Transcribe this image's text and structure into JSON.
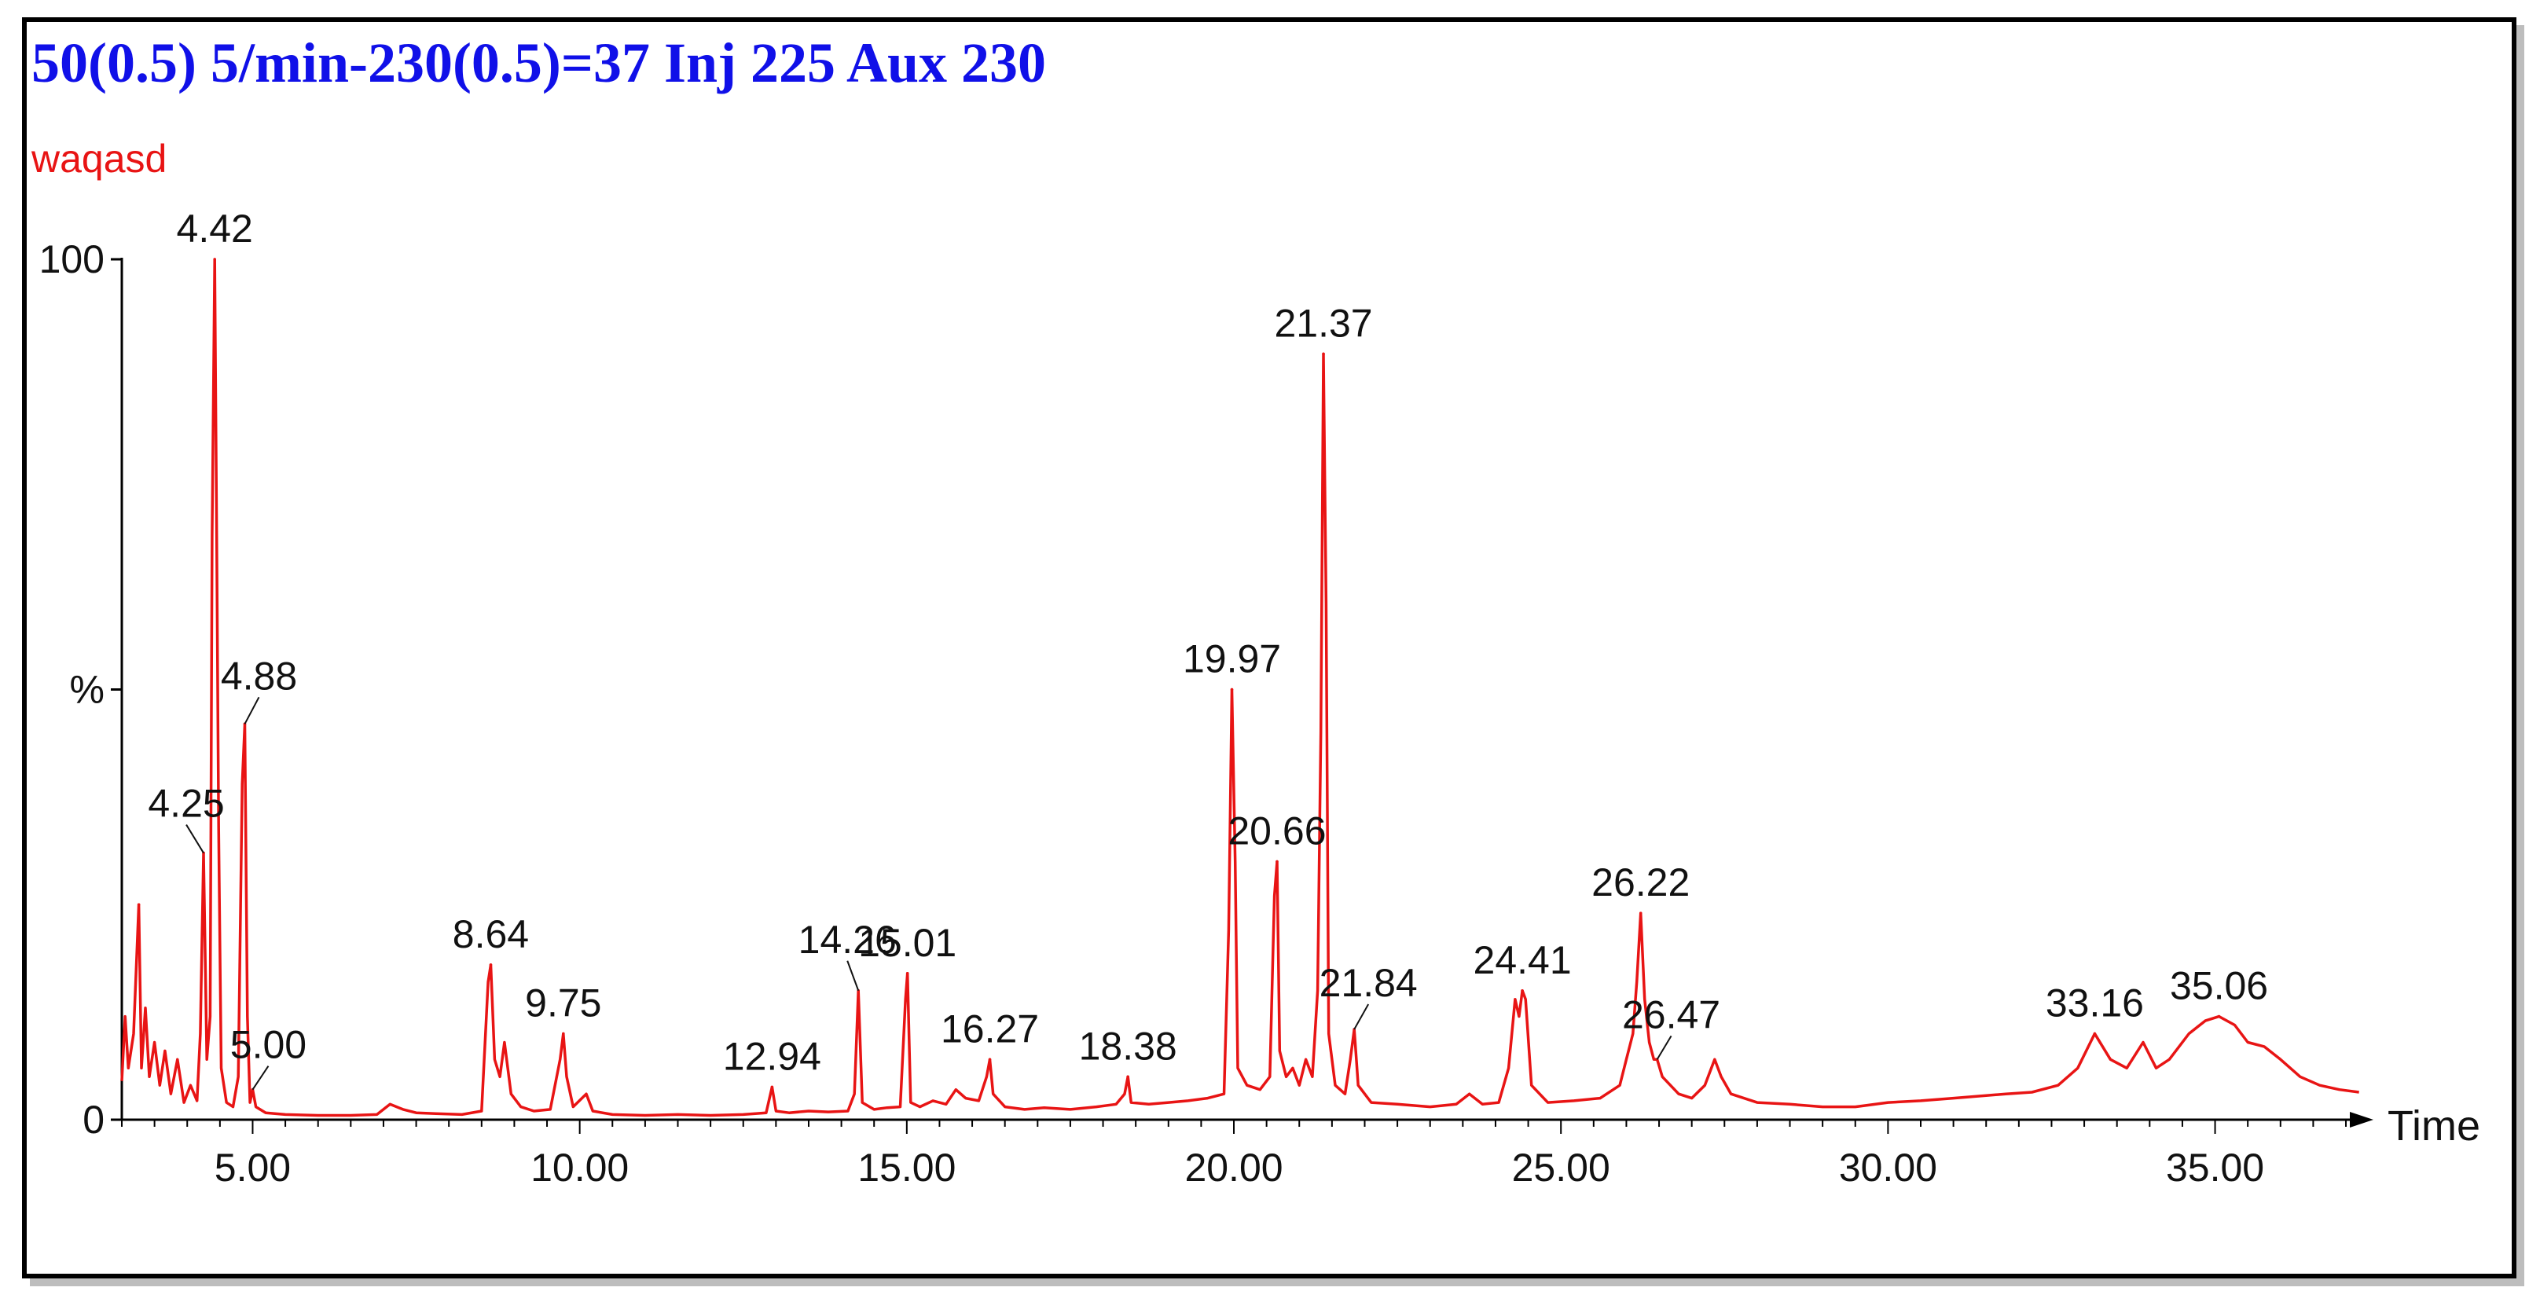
{
  "colors": {
    "title": "#1010e8",
    "trace": "#e81414",
    "axis": "#000000",
    "text": "#111111"
  },
  "chart_data": {
    "type": "line",
    "title": "50(0.5) 5/min-230(0.5)=37 Inj 225 Aux 230",
    "subtitle": "waqasd",
    "xlabel": "Time",
    "ylabel": "%",
    "xlim": [
      3.0,
      37.3
    ],
    "ylim": [
      0,
      100
    ],
    "x_ticks": [
      5.0,
      10.0,
      15.0,
      20.0,
      25.0,
      30.0,
      35.0
    ],
    "x_tick_labels": [
      "5.00",
      "10.00",
      "15.00",
      "20.00",
      "25.00",
      "30.00",
      "35.00"
    ],
    "y_ticks": [
      0,
      50,
      100
    ],
    "y_tick_labels": [
      "0",
      "%",
      "100"
    ],
    "grid": false,
    "peaks": [
      {
        "x": 3.26,
        "y": 25
      },
      {
        "x": 4.25,
        "y": 31,
        "label": "4.25"
      },
      {
        "x": 4.42,
        "y": 100,
        "label": "4.42"
      },
      {
        "x": 4.88,
        "y": 46,
        "label": "4.88"
      },
      {
        "x": 5.0,
        "y": 3.5,
        "label": "5.00"
      },
      {
        "x": 8.64,
        "y": 18,
        "label": "8.64"
      },
      {
        "x": 9.75,
        "y": 10,
        "label": "9.75"
      },
      {
        "x": 12.94,
        "y": 3.8,
        "label": "12.94"
      },
      {
        "x": 14.26,
        "y": 15,
        "label": "14.26"
      },
      {
        "x": 15.01,
        "y": 17,
        "label": "15.01"
      },
      {
        "x": 16.27,
        "y": 7,
        "label": "16.27"
      },
      {
        "x": 18.38,
        "y": 5,
        "label": "18.38"
      },
      {
        "x": 19.97,
        "y": 50,
        "label": "19.97"
      },
      {
        "x": 20.66,
        "y": 30,
        "label": "20.66"
      },
      {
        "x": 21.37,
        "y": 89,
        "label": "21.37"
      },
      {
        "x": 21.84,
        "y": 10.5,
        "label": "21.84"
      },
      {
        "x": 24.41,
        "y": 15,
        "label": "24.41"
      },
      {
        "x": 26.22,
        "y": 24,
        "label": "26.22"
      },
      {
        "x": 26.47,
        "y": 7,
        "label": "26.47"
      },
      {
        "x": 33.16,
        "y": 10,
        "label": "33.16"
      },
      {
        "x": 35.06,
        "y": 12,
        "label": "35.06"
      }
    ],
    "trace_points": [
      [
        3.0,
        4.5
      ],
      [
        3.05,
        12
      ],
      [
        3.1,
        6
      ],
      [
        3.18,
        10
      ],
      [
        3.26,
        25
      ],
      [
        3.3,
        6
      ],
      [
        3.36,
        13
      ],
      [
        3.42,
        5
      ],
      [
        3.5,
        9
      ],
      [
        3.58,
        4
      ],
      [
        3.66,
        8
      ],
      [
        3.75,
        3
      ],
      [
        3.85,
        7
      ],
      [
        3.95,
        2
      ],
      [
        4.05,
        4
      ],
      [
        4.15,
        2.2
      ],
      [
        4.2,
        10
      ],
      [
        4.25,
        31
      ],
      [
        4.3,
        7
      ],
      [
        4.35,
        12
      ],
      [
        4.38,
        68
      ],
      [
        4.42,
        100
      ],
      [
        4.45,
        68
      ],
      [
        4.48,
        34
      ],
      [
        4.52,
        6
      ],
      [
        4.6,
        2
      ],
      [
        4.7,
        1.5
      ],
      [
        4.78,
        5
      ],
      [
        4.84,
        39
      ],
      [
        4.88,
        46
      ],
      [
        4.92,
        12
      ],
      [
        4.96,
        2
      ],
      [
        5.0,
        3.5
      ],
      [
        5.05,
        1.5
      ],
      [
        5.2,
        0.8
      ],
      [
        5.5,
        0.6
      ],
      [
        6.0,
        0.5
      ],
      [
        6.5,
        0.5
      ],
      [
        6.9,
        0.6
      ],
      [
        7.1,
        1.8
      ],
      [
        7.3,
        1.2
      ],
      [
        7.5,
        0.8
      ],
      [
        7.8,
        0.7
      ],
      [
        8.2,
        0.6
      ],
      [
        8.5,
        1.0
      ],
      [
        8.6,
        16
      ],
      [
        8.64,
        18
      ],
      [
        8.7,
        7
      ],
      [
        8.78,
        5
      ],
      [
        8.85,
        9
      ],
      [
        8.95,
        3
      ],
      [
        9.1,
        1.5
      ],
      [
        9.3,
        1.0
      ],
      [
        9.55,
        1.2
      ],
      [
        9.7,
        7
      ],
      [
        9.75,
        10
      ],
      [
        9.8,
        5
      ],
      [
        9.9,
        1.5
      ],
      [
        10.1,
        3
      ],
      [
        10.2,
        1.0
      ],
      [
        10.5,
        0.6
      ],
      [
        11.0,
        0.5
      ],
      [
        11.5,
        0.6
      ],
      [
        12.0,
        0.5
      ],
      [
        12.5,
        0.6
      ],
      [
        12.85,
        0.8
      ],
      [
        12.94,
        3.8
      ],
      [
        13.0,
        1.0
      ],
      [
        13.2,
        0.8
      ],
      [
        13.5,
        1.0
      ],
      [
        13.8,
        0.9
      ],
      [
        14.1,
        1.0
      ],
      [
        14.2,
        3
      ],
      [
        14.26,
        15
      ],
      [
        14.32,
        2
      ],
      [
        14.5,
        1.2
      ],
      [
        14.7,
        1.4
      ],
      [
        14.9,
        1.5
      ],
      [
        14.98,
        14
      ],
      [
        15.01,
        17
      ],
      [
        15.06,
        2
      ],
      [
        15.2,
        1.5
      ],
      [
        15.4,
        2.2
      ],
      [
        15.6,
        1.8
      ],
      [
        15.75,
        3.5
      ],
      [
        15.9,
        2.5
      ],
      [
        16.1,
        2.2
      ],
      [
        16.22,
        5
      ],
      [
        16.27,
        7
      ],
      [
        16.32,
        3
      ],
      [
        16.5,
        1.5
      ],
      [
        16.8,
        1.2
      ],
      [
        17.1,
        1.4
      ],
      [
        17.5,
        1.2
      ],
      [
        17.9,
        1.5
      ],
      [
        18.2,
        1.8
      ],
      [
        18.33,
        3
      ],
      [
        18.38,
        5
      ],
      [
        18.43,
        2
      ],
      [
        18.7,
        1.8
      ],
      [
        19.0,
        2
      ],
      [
        19.3,
        2.2
      ],
      [
        19.6,
        2.5
      ],
      [
        19.85,
        3
      ],
      [
        19.92,
        22
      ],
      [
        19.97,
        50
      ],
      [
        20.02,
        30
      ],
      [
        20.06,
        6
      ],
      [
        20.2,
        4
      ],
      [
        20.4,
        3.5
      ],
      [
        20.55,
        5
      ],
      [
        20.62,
        26
      ],
      [
        20.66,
        30
      ],
      [
        20.7,
        8
      ],
      [
        20.8,
        5
      ],
      [
        20.9,
        6
      ],
      [
        21.0,
        4
      ],
      [
        21.1,
        7
      ],
      [
        21.2,
        5
      ],
      [
        21.28,
        15
      ],
      [
        21.33,
        45
      ],
      [
        21.37,
        89
      ],
      [
        21.41,
        60
      ],
      [
        21.45,
        10
      ],
      [
        21.55,
        4
      ],
      [
        21.7,
        3
      ],
      [
        21.78,
        7
      ],
      [
        21.84,
        10.5
      ],
      [
        21.9,
        4
      ],
      [
        22.1,
        2
      ],
      [
        22.5,
        1.8
      ],
      [
        23.0,
        1.5
      ],
      [
        23.4,
        1.8
      ],
      [
        23.6,
        3
      ],
      [
        23.8,
        1.8
      ],
      [
        24.05,
        2
      ],
      [
        24.2,
        6
      ],
      [
        24.3,
        14
      ],
      [
        24.36,
        12
      ],
      [
        24.41,
        15
      ],
      [
        24.46,
        14
      ],
      [
        24.55,
        4
      ],
      [
        24.8,
        2
      ],
      [
        25.2,
        2.2
      ],
      [
        25.6,
        2.5
      ],
      [
        25.9,
        4
      ],
      [
        26.0,
        7
      ],
      [
        26.1,
        10
      ],
      [
        26.16,
        16
      ],
      [
        26.22,
        24
      ],
      [
        26.28,
        14
      ],
      [
        26.35,
        9
      ],
      [
        26.42,
        7
      ],
      [
        26.47,
        7
      ],
      [
        26.55,
        5
      ],
      [
        26.8,
        3
      ],
      [
        27.0,
        2.5
      ],
      [
        27.2,
        4
      ],
      [
        27.35,
        7
      ],
      [
        27.45,
        5
      ],
      [
        27.6,
        3
      ],
      [
        28.0,
        2
      ],
      [
        28.5,
        1.8
      ],
      [
        29.0,
        1.5
      ],
      [
        29.5,
        1.5
      ],
      [
        30.0,
        2
      ],
      [
        30.5,
        2.2
      ],
      [
        31.0,
        2.5
      ],
      [
        31.5,
        2.8
      ],
      [
        31.8,
        3
      ],
      [
        32.2,
        3.2
      ],
      [
        32.6,
        4
      ],
      [
        32.9,
        6
      ],
      [
        33.16,
        10
      ],
      [
        33.4,
        7
      ],
      [
        33.65,
        6
      ],
      [
        33.9,
        9
      ],
      [
        34.1,
        6
      ],
      [
        34.3,
        7
      ],
      [
        34.6,
        10
      ],
      [
        34.85,
        11.5
      ],
      [
        35.06,
        12
      ],
      [
        35.3,
        11
      ],
      [
        35.5,
        9
      ],
      [
        35.75,
        8.5
      ],
      [
        36.0,
        7
      ],
      [
        36.3,
        5
      ],
      [
        36.6,
        4
      ],
      [
        36.9,
        3.5
      ],
      [
        37.2,
        3.2
      ]
    ]
  }
}
